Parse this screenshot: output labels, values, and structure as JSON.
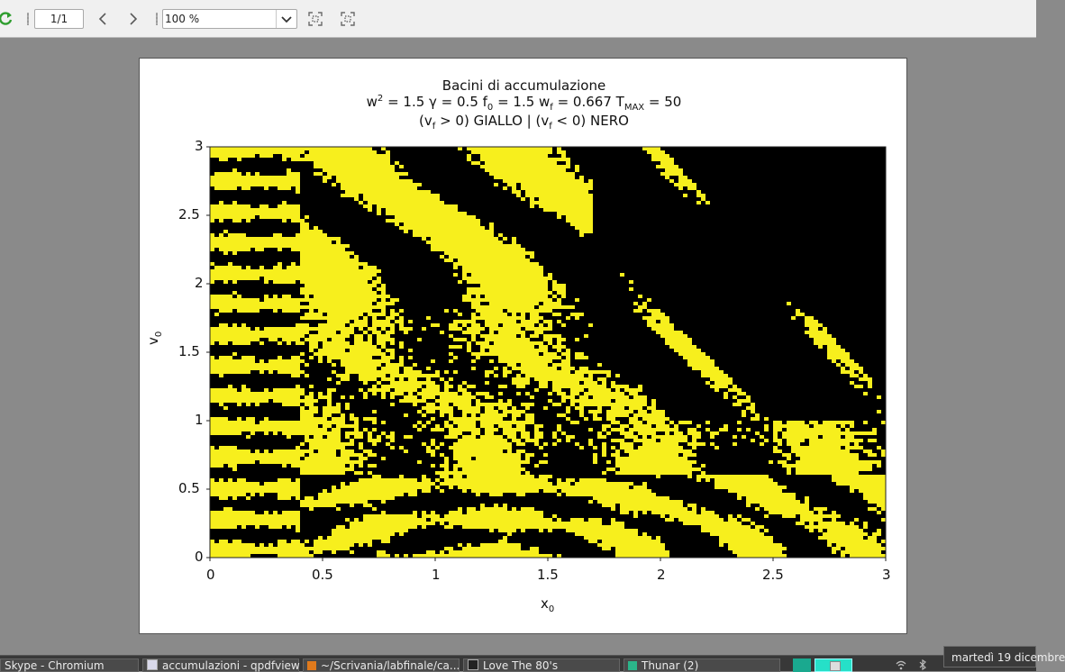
{
  "toolbar": {
    "page_indicator": "1/1",
    "zoom_value": "100 %",
    "icons": [
      "reload-icon",
      "previous-page-icon",
      "next-page-icon",
      "zoom-dropdown-icon",
      "fit-page-icon",
      "fit-width-icon"
    ]
  },
  "plot": {
    "title_line1": "Bacini di accumulazione",
    "title_line2": {
      "w": "w",
      "w_exp": "2",
      "part_a": " = 1.5 γ = 0.5 f",
      "f_sub": "0",
      "part_b": " = 1.5 w",
      "wf_sub": "f",
      "part_c": " = 0.667 T",
      "t_sub": "MAX",
      "part_d": " = 50"
    },
    "title_line3": {
      "open1": "(v",
      "sub1": "f",
      "mid": " > 0) GIALLO | (v",
      "sub2": "f",
      "end": " < 0) NERO"
    },
    "xlabel": "x",
    "xlabel_sub": "0",
    "ylabel": "v",
    "ylabel_sub": "0",
    "colors": {
      "positive": "#f7ef1d",
      "negative": "#000000"
    }
  },
  "chart_data": {
    "type": "heatmap",
    "title": "Bacini di accumulazione",
    "subtitle": "w² = 1.5 γ = 0.5 f0 = 1.5 wf = 0.667 TMAX = 50 — (vf > 0) GIALLO | (vf < 0) NERO",
    "xlabel": "x0",
    "ylabel": "v0",
    "xlim": [
      0,
      3
    ],
    "ylim": [
      0,
      3
    ],
    "xticks": [
      "0",
      "0.5",
      "1",
      "1.5",
      "2",
      "2.5",
      "3"
    ],
    "yticks": [
      "0",
      "0.5",
      "1",
      "1.5",
      "2",
      "2.5",
      "3"
    ],
    "categories": [
      "vf > 0",
      "vf < 0"
    ],
    "category_colors": [
      "#f7ef1d",
      "#000000"
    ]
  },
  "taskbar": {
    "tasks": [
      {
        "label": "Skype - Chromium",
        "icon": "chromium-icon"
      },
      {
        "label": "accumulazioni - qpdfview",
        "icon": "pdf-icon"
      },
      {
        "label": "~/Scrivania/labfinale/ca...",
        "icon": "editor-icon"
      },
      {
        "label": "Love The 80's",
        "icon": "terminal-icon"
      },
      {
        "label": "Thunar (2)",
        "icon": "folder-icon"
      }
    ],
    "clock_tooltip": "martedì 19 dicembre"
  }
}
